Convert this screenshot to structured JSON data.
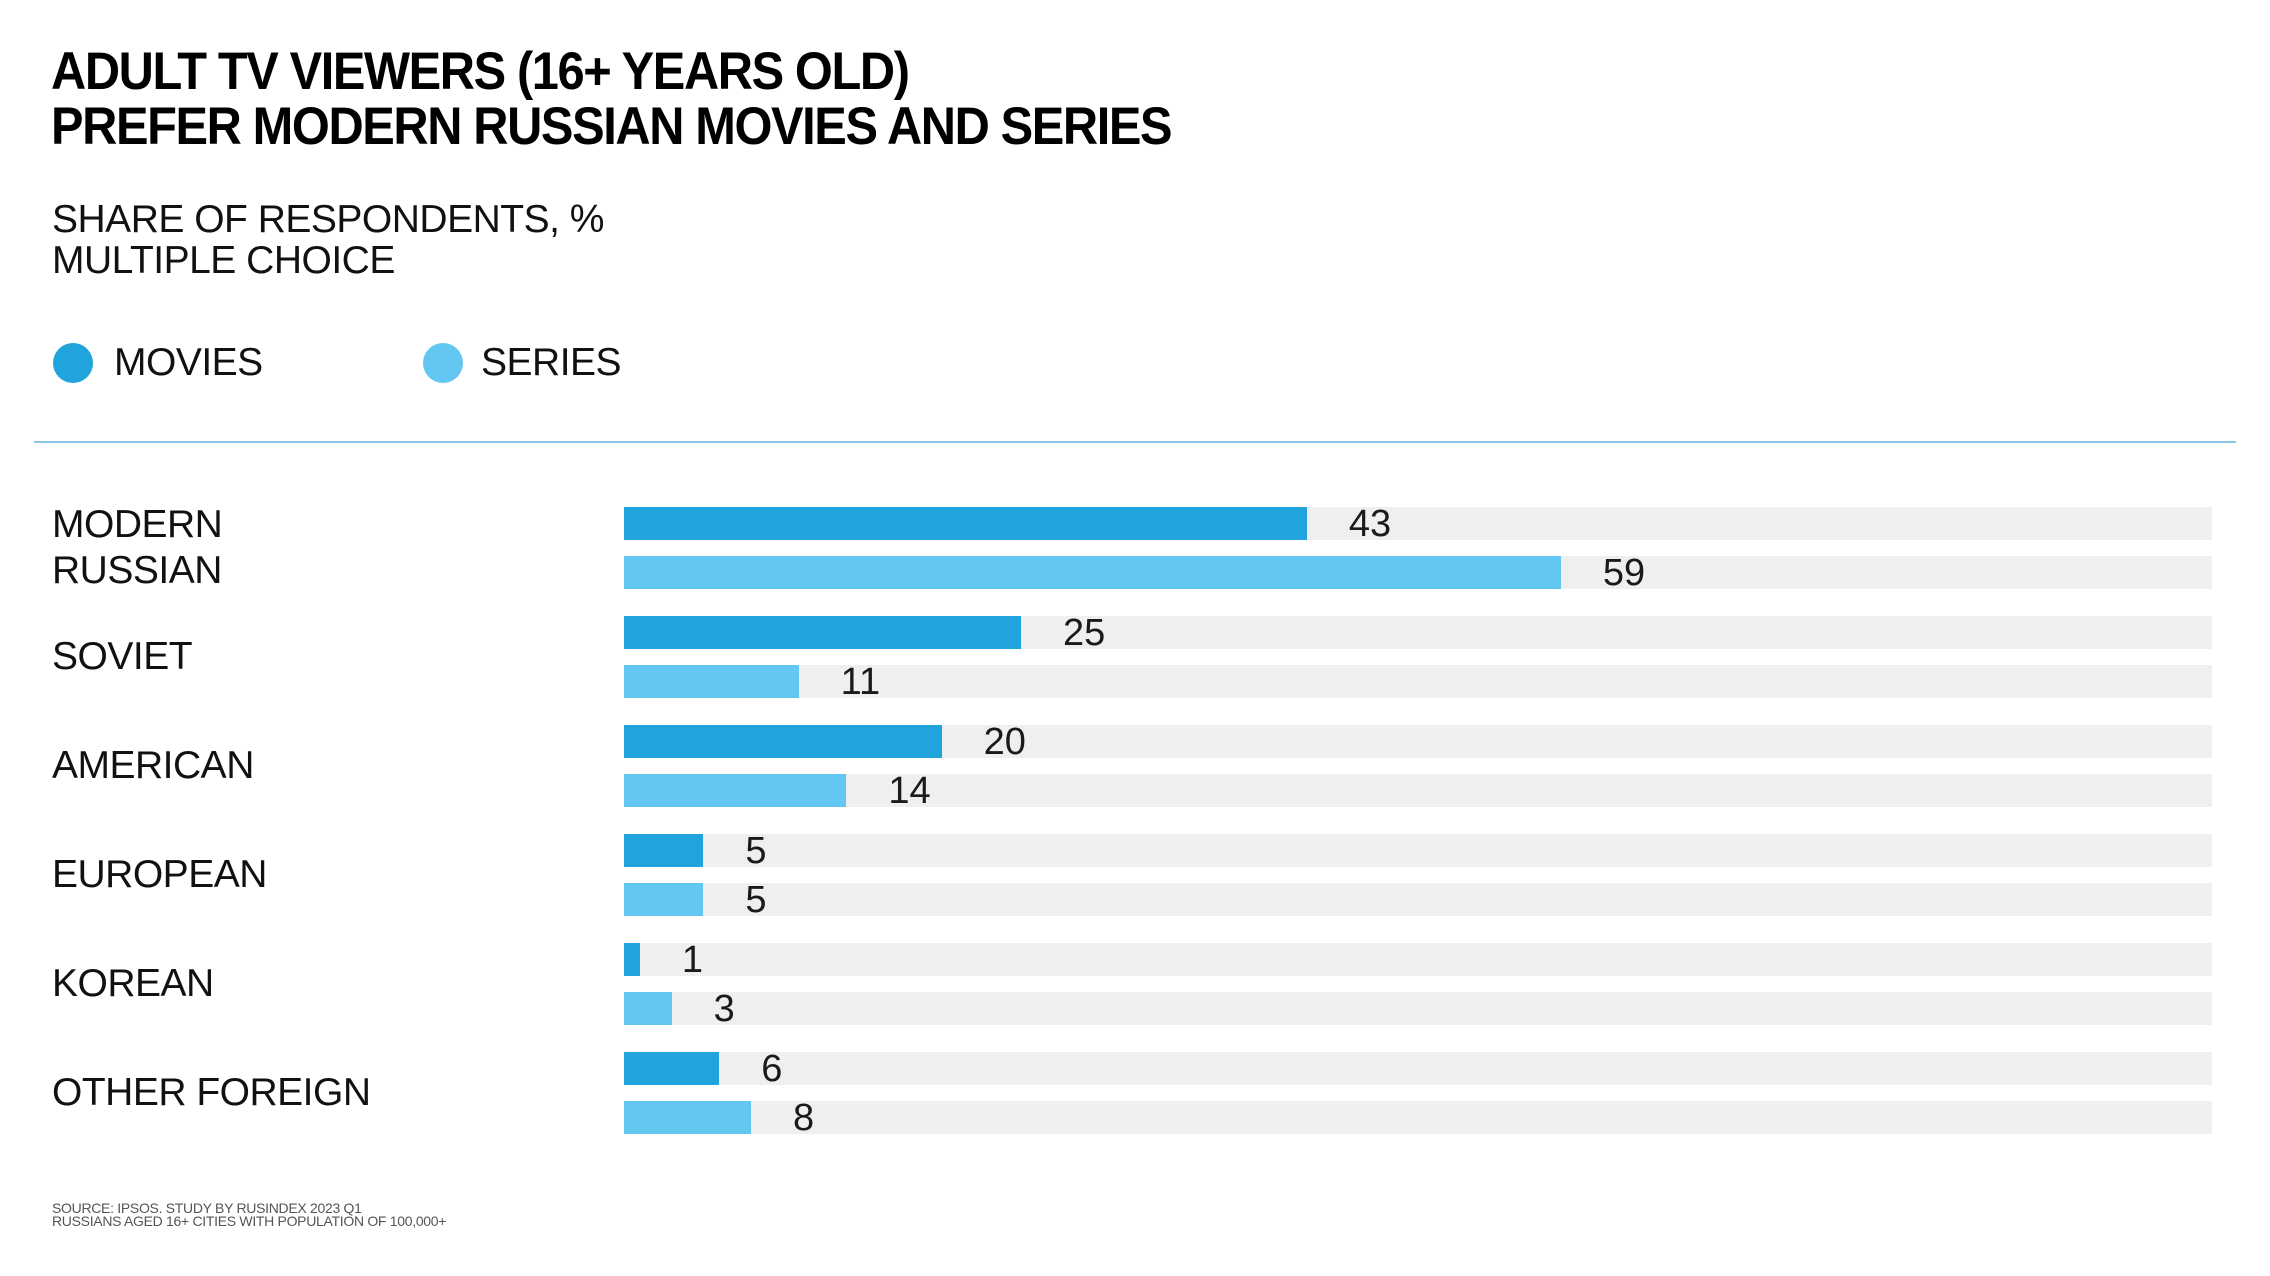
{
  "header": {
    "title_lines": [
      "ADULT TV VIEWERS (16+ YEARS OLD)",
      "PREFER MODERN RUSSIAN MOVIES AND SERIES"
    ],
    "subtitle_lines": [
      "SHARE OF RESPONDENTS, %",
      "MULTIPLE CHOICE"
    ]
  },
  "legend": [
    {
      "label": "MOVIES",
      "color": "#21a3db",
      "icon": "circle-icon"
    },
    {
      "label": "SERIES",
      "color": "#63c7f2",
      "icon": "circle-icon"
    }
  ],
  "footer": {
    "lines": [
      "SOURCE: IPSOS. STUDY BY RUSINDEX 2023 Q1",
      "RUSSIANS AGED 16+ CITIES WITH POPULATION OF 100,000+"
    ]
  },
  "colors": {
    "track": "#efefef",
    "divider": "#8cc4e6"
  },
  "chart_data": {
    "type": "bar",
    "orientation": "horizontal",
    "title": "ADULT TV VIEWERS (16+ YEARS OLD) PREFER MODERN RUSSIAN MOVIES AND SERIES",
    "subtitle": "SHARE OF RESPONDENTS, % MULTIPLE CHOICE",
    "categories": [
      [
        "MODERN",
        "RUSSIAN"
      ],
      [
        "SOVIET"
      ],
      [
        "AMERICAN"
      ],
      [
        "EUROPEAN"
      ],
      [
        "KOREAN"
      ],
      [
        "OTHER FOREIGN"
      ]
    ],
    "series": [
      {
        "name": "MOVIES",
        "color": "#21a3db",
        "values": [
          43,
          25,
          20,
          5,
          1,
          6
        ]
      },
      {
        "name": "SERIES",
        "color": "#63c7f2",
        "values": [
          59,
          11,
          14,
          5,
          3,
          8
        ]
      }
    ],
    "xlabel": "",
    "ylabel": "",
    "xlim": [
      0,
      100
    ],
    "grid": false,
    "legend_position": "top-left",
    "data_labels": true
  }
}
